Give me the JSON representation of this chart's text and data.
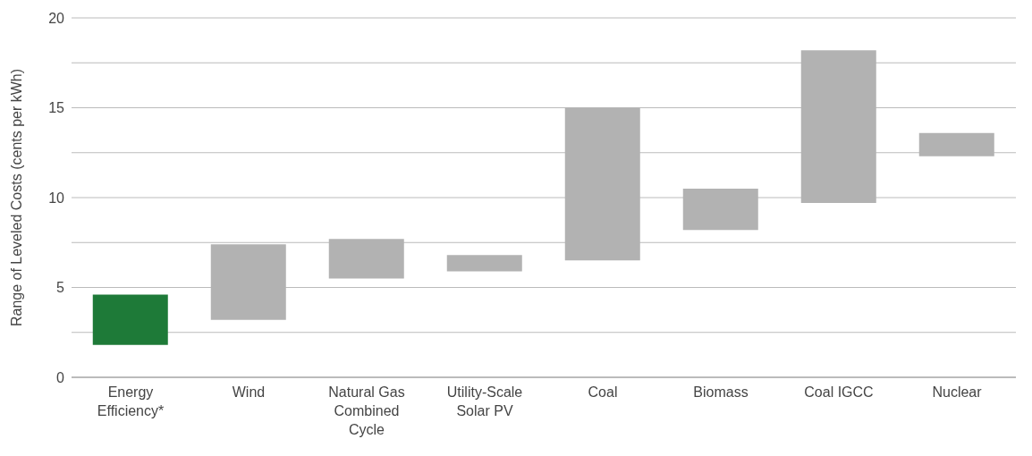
{
  "chart_data": {
    "type": "bar",
    "ylabel": "Range of Leveled Costs (cents per kWh)",
    "categories": [
      "Energy Efficiency*",
      "Wind",
      "Natural Gas Combined Cycle",
      "Utility-Scale Solar PV",
      "Coal",
      "Biomass",
      "Coal IGCC",
      "Nuclear"
    ],
    "base": [
      1.8,
      3.2,
      5.5,
      5.9,
      6.5,
      8.2,
      9.7,
      12.3
    ],
    "values": [
      2.8,
      4.2,
      2.2,
      0.9,
      8.5,
      2.3,
      8.5,
      1.3
    ],
    "colors": [
      "#1e7a38",
      "#b2b2b2",
      "#b2b2b2",
      "#b2b2b2",
      "#b2b2b2",
      "#b2b2b2",
      "#b2b2b2",
      "#b2b2b2"
    ],
    "ylim": [
      0,
      20
    ],
    "yticks": [
      0,
      {
        "value": 2.5,
        "label": null
      },
      5,
      {
        "value": 7.5,
        "label": null
      },
      10,
      {
        "value": 12.5,
        "label": null
      },
      15,
      {
        "value": 17.5,
        "label": null
      },
      20
    ],
    "grid": "y"
  }
}
